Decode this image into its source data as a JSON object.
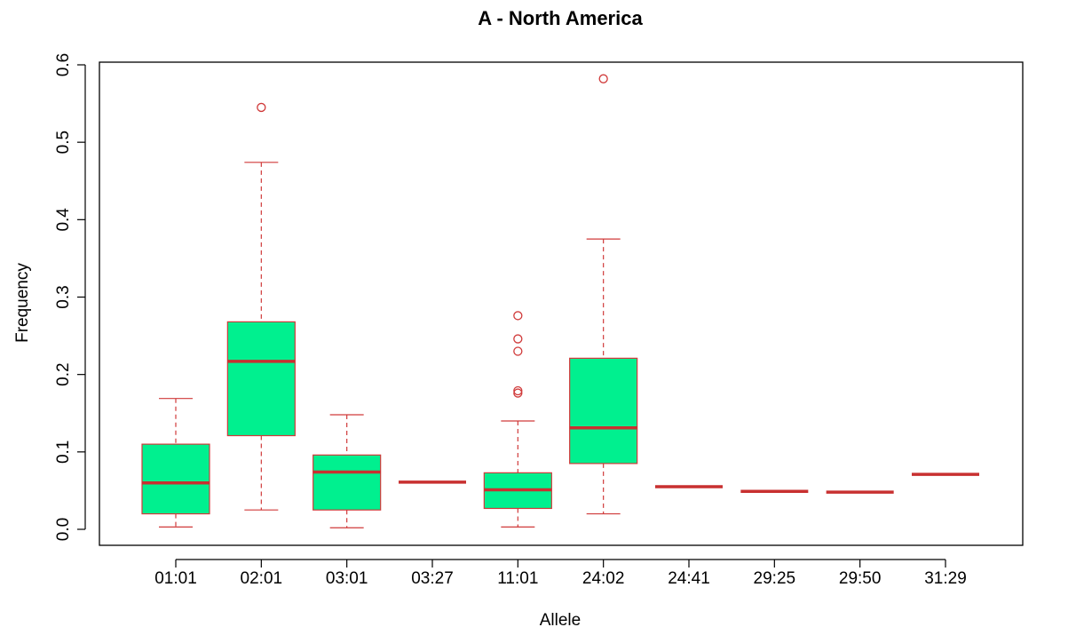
{
  "chart_data": {
    "type": "boxplot",
    "title": "A - North America",
    "xlabel": "Allele",
    "ylabel": "Frequency",
    "ylim": [
      -0.02,
      0.61
    ],
    "yticks": [
      "0.0",
      "0.1",
      "0.2",
      "0.3",
      "0.4",
      "0.5",
      "0.6"
    ],
    "ytick_values": [
      0.0,
      0.1,
      0.2,
      0.3,
      0.4,
      0.5,
      0.6
    ],
    "grid": false,
    "colors": {
      "box_fill": "#00F08F",
      "box_stroke": "#D03A3A",
      "median": "#C83030",
      "whisker": "#D03A3A",
      "outlier": "#D03A3A",
      "axis": "#000000"
    },
    "categories": [
      "01:01",
      "02:01",
      "03:01",
      "03:27",
      "11:01",
      "24:02",
      "24:41",
      "29:25",
      "29:50",
      "31:29"
    ],
    "boxes": [
      {
        "category": "01:01",
        "min": 0.003,
        "q1": 0.02,
        "median": 0.06,
        "q3": 0.11,
        "max": 0.169,
        "outliers": []
      },
      {
        "category": "02:01",
        "min": 0.025,
        "q1": 0.121,
        "median": 0.217,
        "q3": 0.268,
        "max": 0.474,
        "outliers": [
          0.545
        ]
      },
      {
        "category": "03:01",
        "min": 0.002,
        "q1": 0.025,
        "median": 0.074,
        "q3": 0.096,
        "max": 0.148,
        "outliers": []
      },
      {
        "category": "03:27",
        "min": 0.061,
        "q1": 0.061,
        "median": 0.061,
        "q3": 0.061,
        "max": 0.061,
        "outliers": []
      },
      {
        "category": "11:01",
        "min": 0.003,
        "q1": 0.027,
        "median": 0.051,
        "q3": 0.073,
        "max": 0.14,
        "outliers": [
          0.176,
          0.179,
          0.23,
          0.246,
          0.276
        ]
      },
      {
        "category": "24:02",
        "min": 0.02,
        "q1": 0.085,
        "median": 0.131,
        "q3": 0.221,
        "max": 0.375,
        "outliers": [
          0.582
        ]
      },
      {
        "category": "24:41",
        "min": 0.055,
        "q1": 0.055,
        "median": 0.055,
        "q3": 0.055,
        "max": 0.055,
        "outliers": []
      },
      {
        "category": "29:25",
        "min": 0.049,
        "q1": 0.049,
        "median": 0.049,
        "q3": 0.049,
        "max": 0.049,
        "outliers": []
      },
      {
        "category": "29:50",
        "min": 0.048,
        "q1": 0.048,
        "median": 0.048,
        "q3": 0.048,
        "max": 0.048,
        "outliers": []
      },
      {
        "category": "31:29",
        "min": 0.071,
        "q1": 0.071,
        "median": 0.071,
        "q3": 0.071,
        "max": 0.071,
        "outliers": []
      }
    ]
  }
}
